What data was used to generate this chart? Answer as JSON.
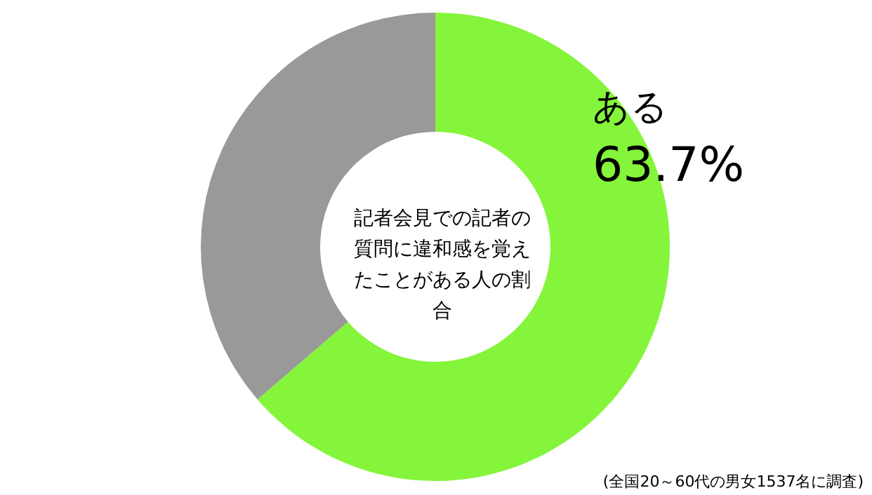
{
  "chart_data": {
    "type": "donut",
    "title": "記者会見での記者の質問に違和感を覚えたことがある人の割合",
    "categories": [
      "ある",
      null
    ],
    "values": [
      63.7,
      36.3
    ],
    "colors": [
      "#84f53a",
      "#999999"
    ],
    "value_labels": [
      "63.7%",
      null
    ],
    "annotations": [
      "(全国20～60代の男女1537名に調査)"
    ],
    "legend": false
  }
}
